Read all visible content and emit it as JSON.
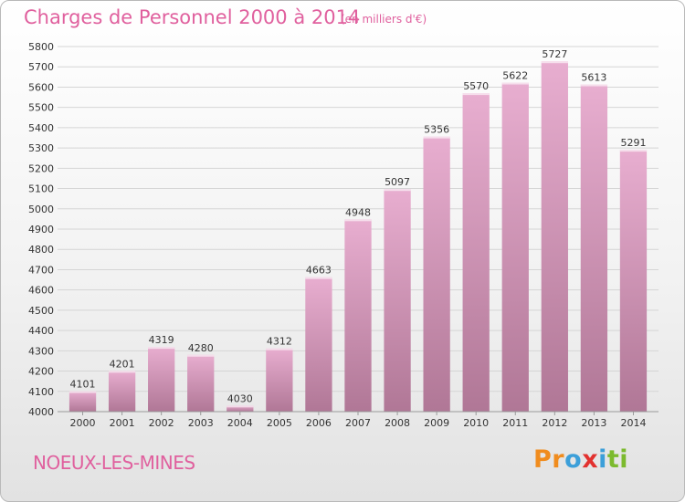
{
  "header": {
    "title": "Charges de Personnel 2000 à 2014",
    "unit": "(en milliers d'€)"
  },
  "footer": {
    "commune": "NOEUX-LES-MINES",
    "logo": "Proxiti",
    "logo_colors": [
      "#f08c1e",
      "#f08c1e",
      "#3c9fd9",
      "#e2312f",
      "#3c9fd9",
      "#7cba2e",
      "#7cba2e"
    ]
  },
  "colors": {
    "title": "#e0609e",
    "bar_top": "#e8aed0",
    "bar_bottom": "#b07796",
    "grid": "#d5d5d5"
  },
  "chart_data": {
    "type": "bar",
    "title": "Charges de Personnel 2000 à 2014",
    "subtitle": "(en milliers d'€)",
    "xlabel": "",
    "ylabel": "",
    "ylim": [
      4000,
      5800
    ],
    "yticks": [
      4000,
      4100,
      4200,
      4300,
      4400,
      4500,
      4600,
      4700,
      4800,
      4900,
      5000,
      5100,
      5200,
      5300,
      5400,
      5500,
      5600,
      5700,
      5800
    ],
    "grid": true,
    "categories": [
      "2000",
      "2001",
      "2002",
      "2003",
      "2004",
      "2005",
      "2006",
      "2007",
      "2008",
      "2009",
      "2010",
      "2011",
      "2012",
      "2013",
      "2014"
    ],
    "values": [
      4101,
      4201,
      4319,
      4280,
      4030,
      4312,
      4663,
      4948,
      5097,
      5356,
      5570,
      5622,
      5727,
      5613,
      5291
    ]
  }
}
